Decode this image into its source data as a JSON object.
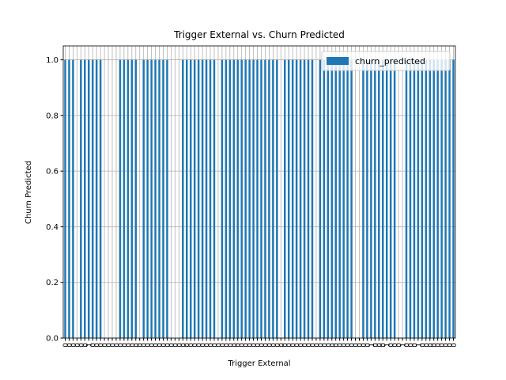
{
  "chart_data": {
    "type": "bar",
    "title": "Trigger External vs. Churn Predicted",
    "xlabel": "Trigger External",
    "ylabel": "Churn Predicted",
    "categories": [
      "0",
      "0",
      "0",
      "0",
      "0",
      "0",
      "1",
      "0",
      "0",
      "0",
      "0",
      "0",
      "0",
      "0",
      "0",
      "0",
      "0",
      "0",
      "0",
      "0",
      "0",
      "0",
      "0",
      "0",
      "0",
      "0",
      "0",
      "0",
      "0",
      "0",
      "0",
      "0",
      "0",
      "0",
      "0",
      "0",
      "0",
      "0",
      "0",
      "0",
      "0",
      "0",
      "0",
      "0",
      "0",
      "0",
      "0",
      "0",
      "0",
      "0",
      "0",
      "0",
      "0",
      "0",
      "0",
      "0",
      "0",
      "0",
      "0",
      "0",
      "0",
      "0",
      "0",
      "0",
      "0",
      "0",
      "0",
      "0",
      "0",
      "0",
      "0",
      "0",
      "0",
      "0",
      "0",
      "0",
      "0",
      "0",
      "1",
      "0",
      "0",
      "0",
      "1",
      "0",
      "0",
      "0",
      "1",
      "0",
      "0",
      "0",
      "1",
      "0",
      "0",
      "0",
      "0",
      "0",
      "0",
      "0",
      "0",
      "0"
    ],
    "series": [
      {
        "name": "churn_predicted",
        "color": "#1f77b4",
        "values": [
          1,
          1,
          1,
          0,
          1,
          1,
          1,
          1,
          1,
          1,
          0,
          0,
          0,
          0,
          1,
          1,
          1,
          1,
          1,
          0,
          1,
          1,
          1,
          1,
          1,
          1,
          1,
          0,
          0,
          0,
          1,
          1,
          1,
          1,
          1,
          1,
          1,
          1,
          1,
          0,
          1,
          1,
          1,
          1,
          1,
          1,
          1,
          1,
          1,
          1,
          1,
          1,
          1,
          1,
          1,
          0,
          1,
          1,
          1,
          1,
          1,
          1,
          1,
          1,
          0,
          1,
          1,
          1,
          1,
          1,
          1,
          1,
          1,
          1,
          0,
          0,
          1,
          1,
          1,
          1,
          1,
          1,
          1,
          1,
          1,
          0,
          0,
          1,
          1,
          1,
          1,
          1,
          1,
          1,
          1,
          1,
          1,
          1,
          1,
          1
        ]
      }
    ],
    "ylim": [
      0,
      1.05
    ],
    "yticks": [
      {
        "value": 0,
        "label": "0.0"
      },
      {
        "value": 0.2,
        "label": "0.2"
      },
      {
        "value": 0.4,
        "label": "0.4"
      },
      {
        "value": 0.6,
        "label": "0.6"
      },
      {
        "value": 0.8,
        "label": "0.8"
      },
      {
        "value": 1,
        "label": "1.0"
      }
    ],
    "grid": true,
    "legend": "upper right"
  }
}
